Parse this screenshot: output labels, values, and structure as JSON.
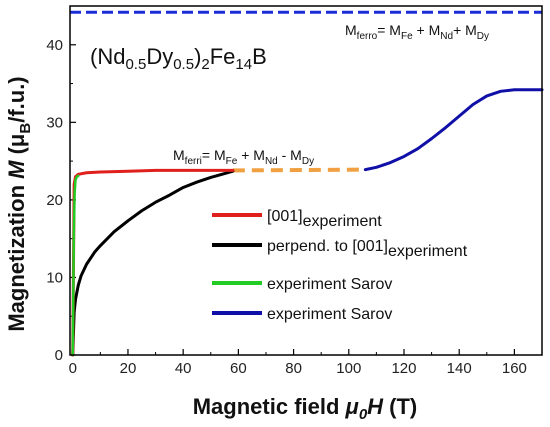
{
  "chart_data": {
    "type": "line",
    "compound": {
      "a": "(Nd",
      "b": "0.5",
      "c": "Dy",
      "d": "0.5",
      "e": ")",
      "f": "2",
      "g": "Fe",
      "h": "14",
      "i": "B"
    },
    "xlabel": {
      "main": "Magnetic field ",
      "sym": "μ",
      "sub": "0",
      "sym2": "H",
      "unit": " (T)"
    },
    "ylabel": {
      "main": "Magnetization ",
      "sym": "M",
      "open": " (μ",
      "sub": "B",
      "close": "/f.u.)"
    },
    "xlim": [
      -1,
      170
    ],
    "ylim": [
      0,
      45
    ],
    "xticks": [
      0,
      20,
      40,
      60,
      80,
      100,
      120,
      140,
      160
    ],
    "yticks": [
      0,
      10,
      20,
      30,
      40
    ],
    "xtick_labels": [
      "0",
      "20",
      "40",
      "60",
      "80",
      "100",
      "120",
      "140",
      "160"
    ],
    "ytick_labels": [
      "0",
      "10",
      "20",
      "30",
      "40"
    ],
    "series": [
      {
        "name": "[001]experiment",
        "legend": {
          "main": "[001]",
          "sub": "experiment"
        },
        "color": "#e0201c",
        "x": [
          0,
          0.5,
          1,
          2,
          5,
          10,
          20,
          30,
          40,
          50,
          58
        ],
        "y": [
          0,
          22.0,
          23.0,
          23.3,
          23.5,
          23.6,
          23.7,
          23.8,
          23.8,
          23.8,
          23.8
        ]
      },
      {
        "name": "perpend. to [001]experiment",
        "legend": {
          "main": "perpend. to [001]",
          "sub": "experiment"
        },
        "color": "#000000",
        "x": [
          0,
          0.5,
          1,
          2,
          3,
          5,
          8,
          10,
          15,
          20,
          25,
          30,
          35,
          40,
          45,
          50,
          55,
          58
        ],
        "y": [
          0,
          5.5,
          7.2,
          9.0,
          10.2,
          11.7,
          13.3,
          14.1,
          15.9,
          17.3,
          18.6,
          19.7,
          20.6,
          21.6,
          22.3,
          22.9,
          23.4,
          23.7
        ]
      },
      {
        "name": "experiment Sarov",
        "legend": {
          "main": "experiment Sarov",
          "sub": ""
        },
        "color": "#22cc22",
        "x": [
          0,
          0.2,
          0.4,
          0.7,
          1.0,
          1.5,
          2.0
        ],
        "y": [
          0,
          8.0,
          16.0,
          21.0,
          22.6,
          23.0,
          23.1
        ]
      },
      {
        "name": "experiment Sarov",
        "legend": {
          "main": "experiment Sarov",
          "sub": ""
        },
        "color": "#1010a8",
        "x": [
          106,
          110,
          115,
          120,
          125,
          130,
          135,
          140,
          145,
          150,
          155,
          160,
          165,
          170
        ],
        "y": [
          23.9,
          24.2,
          24.8,
          25.6,
          26.6,
          27.9,
          29.3,
          30.8,
          32.3,
          33.4,
          34.0,
          34.2,
          34.2,
          34.2
        ]
      }
    ],
    "gap_line": {
      "color": "#f0a040",
      "x": [
        58,
        106
      ],
      "y": [
        23.8,
        23.9
      ]
    },
    "ferro_line": {
      "color": "#1a2ed8",
      "y": 44.2
    },
    "annotations": {
      "ferri": {
        "m1": "M",
        "s1": "ferri",
        "eq": "= M",
        "s2": "Fe",
        "p1": " + M",
        "s3": "Nd",
        "p2": " - M",
        "s4": "Dy"
      },
      "ferro": {
        "m1": "M",
        "s1": "ferro",
        "eq": "= M",
        "s2": "Fe",
        "p1": " + M",
        "s3": "Nd",
        "p2": "+ M",
        "s4": "Dy"
      }
    }
  }
}
